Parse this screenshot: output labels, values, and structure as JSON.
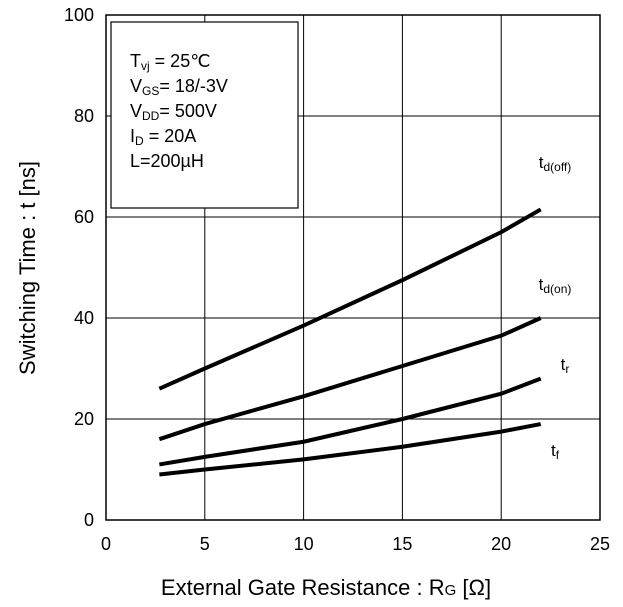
{
  "chart_data": {
    "type": "line",
    "xlabel": {
      "main": "External Gate Resistance : R",
      "sub": "G",
      "unit": " [Ω]"
    },
    "ylabel": "Switching Time : t [ns]",
    "xlim": [
      0,
      25
    ],
    "ylim": [
      0,
      100
    ],
    "xticks": [
      "0",
      "5",
      "10",
      "15",
      "20",
      "25"
    ],
    "yticks": [
      "0",
      "20",
      "40",
      "60",
      "80",
      "100"
    ],
    "grid": true,
    "conditions": [
      {
        "main": "T",
        "sub": "vj",
        "rest": " = 25℃"
      },
      {
        "main": "V",
        "sub": "GS",
        "rest": "= 18/-3V"
      },
      {
        "main": "V",
        "sub": "DD",
        "rest": "= 500V"
      },
      {
        "main": "I",
        "sub": "D",
        "rest": " = 20A"
      },
      {
        "main": "L=200µH",
        "sub": "",
        "rest": ""
      }
    ],
    "series": [
      {
        "name": "t",
        "sub": "d(off)",
        "points": [
          [
            2.7,
            26
          ],
          [
            5,
            30
          ],
          [
            10,
            38.5
          ],
          [
            15,
            47.5
          ],
          [
            20,
            57
          ],
          [
            22,
            61.5
          ]
        ]
      },
      {
        "name": "t",
        "sub": "d(on)",
        "points": [
          [
            2.7,
            16
          ],
          [
            5,
            19
          ],
          [
            10,
            24.5
          ],
          [
            15,
            30.5
          ],
          [
            20,
            36.5
          ],
          [
            22,
            40
          ]
        ]
      },
      {
        "name": "t",
        "sub": "r",
        "points": [
          [
            2.7,
            11
          ],
          [
            5,
            12.5
          ],
          [
            10,
            15.5
          ],
          [
            15,
            20
          ],
          [
            20,
            25
          ],
          [
            22,
            28
          ]
        ]
      },
      {
        "name": "t",
        "sub": "f",
        "points": [
          [
            2.7,
            9
          ],
          [
            5,
            10
          ],
          [
            10,
            12
          ],
          [
            15,
            14.5
          ],
          [
            20,
            17.5
          ],
          [
            22,
            19
          ]
        ]
      }
    ]
  }
}
